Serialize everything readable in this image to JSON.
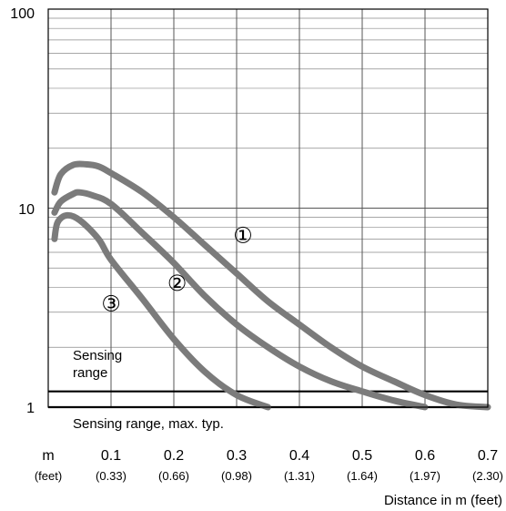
{
  "chart_data": {
    "type": "line",
    "y_scale": "log",
    "ylim": [
      1,
      100
    ],
    "xlim": [
      0,
      0.7
    ],
    "grid": true,
    "y_ticks": [
      "1",
      "10",
      "100"
    ],
    "x_tick_values": [
      0.1,
      0.2,
      0.3,
      0.4,
      0.5,
      0.6,
      0.7
    ],
    "x_ticks": [
      "0.1",
      "0.2",
      "0.3",
      "0.4",
      "0.5",
      "0.6",
      "0.7"
    ],
    "x_ticks_feet": [
      "(0.33)",
      "(0.66)",
      "(0.98)",
      "(1.31)",
      "(1.64)",
      "(1.97)",
      "(2.30)"
    ],
    "x_unit_label": "m",
    "x_unit_label_feet": "(feet)",
    "xlabel": "Distance in m (feet)",
    "ylabel": "",
    "sensing_range": {
      "band_values": [
        1,
        1.2
      ],
      "label_line1": "Sensing",
      "label_line2": "range",
      "max_label": "Sensing range, max. typ."
    },
    "series": [
      {
        "marker": "①",
        "marker_at": [
          0.31,
          7.3
        ],
        "points": [
          [
            0.01,
            12
          ],
          [
            0.02,
            14.8
          ],
          [
            0.04,
            16.5
          ],
          [
            0.06,
            16.6
          ],
          [
            0.08,
            16.2
          ],
          [
            0.1,
            15
          ],
          [
            0.15,
            12
          ],
          [
            0.2,
            9
          ],
          [
            0.25,
            6.5
          ],
          [
            0.3,
            4.7
          ],
          [
            0.35,
            3.4
          ],
          [
            0.4,
            2.6
          ],
          [
            0.45,
            2.0
          ],
          [
            0.5,
            1.6
          ],
          [
            0.55,
            1.35
          ],
          [
            0.6,
            1.15
          ],
          [
            0.65,
            1.03
          ],
          [
            0.7,
            1.0
          ]
        ]
      },
      {
        "marker": "②",
        "marker_at": [
          0.205,
          4.2
        ],
        "points": [
          [
            0.01,
            9.5
          ],
          [
            0.02,
            10.8
          ],
          [
            0.04,
            11.8
          ],
          [
            0.05,
            12
          ],
          [
            0.07,
            11.6
          ],
          [
            0.1,
            10.5
          ],
          [
            0.15,
            7.5
          ],
          [
            0.2,
            5.3
          ],
          [
            0.25,
            3.6
          ],
          [
            0.3,
            2.6
          ],
          [
            0.35,
            2.0
          ],
          [
            0.4,
            1.6
          ],
          [
            0.45,
            1.35
          ],
          [
            0.5,
            1.2
          ],
          [
            0.55,
            1.08
          ],
          [
            0.6,
            1.0
          ]
        ]
      },
      {
        "marker": "③",
        "marker_at": [
          0.1,
          3.3
        ],
        "points": [
          [
            0.01,
            7.0
          ],
          [
            0.015,
            8.5
          ],
          [
            0.03,
            9.2
          ],
          [
            0.05,
            8.7
          ],
          [
            0.08,
            7.0
          ],
          [
            0.1,
            5.5
          ],
          [
            0.15,
            3.5
          ],
          [
            0.2,
            2.2
          ],
          [
            0.25,
            1.5
          ],
          [
            0.3,
            1.15
          ],
          [
            0.35,
            1.0
          ]
        ]
      }
    ]
  }
}
